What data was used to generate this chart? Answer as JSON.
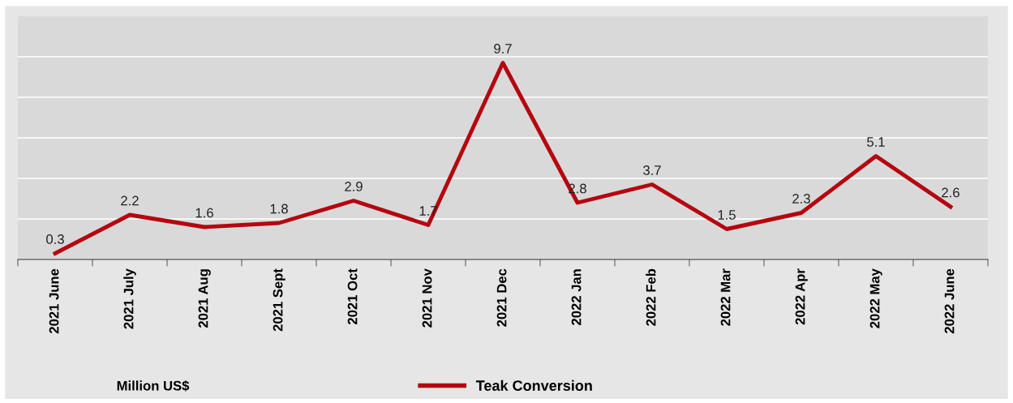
{
  "chart_data": {
    "type": "line",
    "categories": [
      "2021 June",
      "2021 July",
      "2021 Aug",
      "2021 Sept",
      "2021 Oct",
      "2021 Nov",
      "2021 Dec",
      "2022 Jan",
      "2022 Feb",
      "2022 Mar",
      "2022 Apr",
      "2022 May",
      "2022 June"
    ],
    "series": [
      {
        "name": "Teak Conversion",
        "color": "#b5060f",
        "values": [
          0.3,
          2.2,
          1.6,
          1.8,
          2.9,
          1.7,
          9.7,
          2.8,
          3.7,
          1.5,
          2.3,
          5.1,
          2.6
        ]
      }
    ],
    "ylim": [
      0,
      12
    ],
    "yticks": [
      {
        "value": 2,
        "label": null
      },
      {
        "value": 4,
        "label": null
      },
      {
        "value": 6,
        "label": null
      },
      {
        "value": 8,
        "label": null
      },
      {
        "value": 10,
        "label": null
      }
    ],
    "grid": "y",
    "tick_labels": "x",
    "data_labels": true,
    "legend": "bottom",
    "marker": "none",
    "line_style": "solid",
    "annotations": [
      "Million US$"
    ]
  }
}
